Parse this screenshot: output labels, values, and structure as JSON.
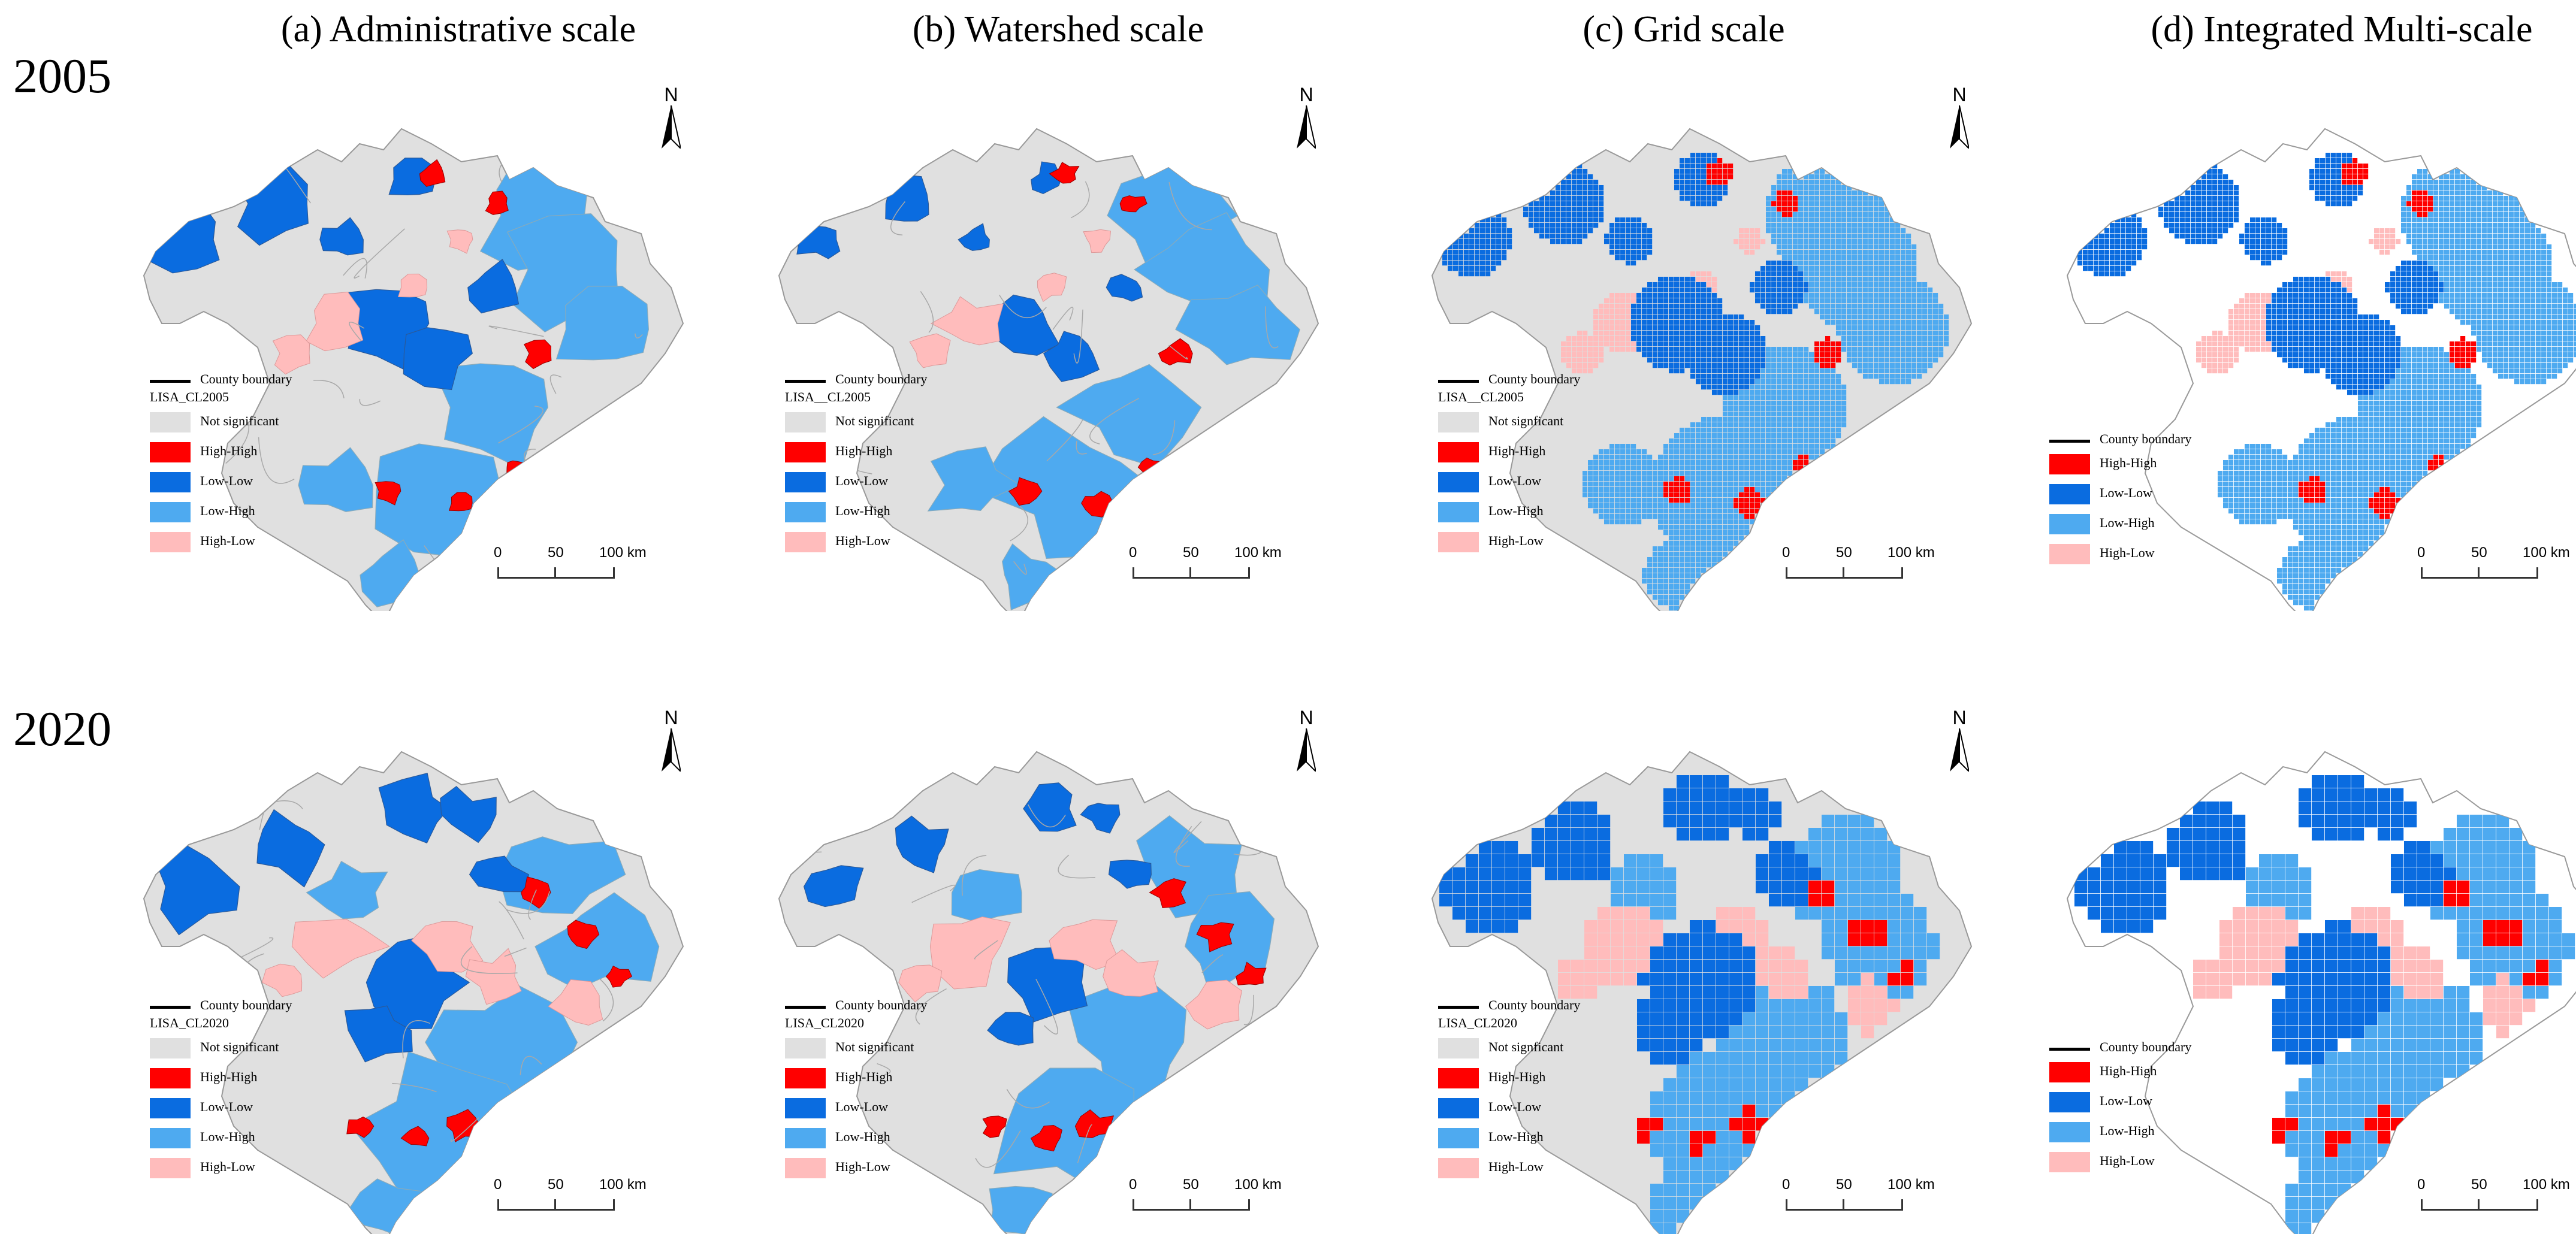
{
  "column_titles": [
    "(a) Administrative scale",
    "(b) Watershed scale",
    "(c) Grid scale",
    "(d) Integrated Multi-scale"
  ],
  "row_labels": [
    "2005",
    "2020"
  ],
  "north_label": "N",
  "legend": {
    "boundary": "County boundary",
    "titles": {
      "p2005a": "LISA_CL2005",
      "p2005b": "LISA__CL2005",
      "p2005c": "LISA__CL2005",
      "p2020a": "LISA_CL2020",
      "p2020b": "LISA_CL2020",
      "p2020c": "LISA_CL2020"
    },
    "not_significant": "Not significant",
    "not_significant_grid": "Not signficant",
    "high_high": "High-High",
    "low_low": "Low-Low",
    "low_high": "Low-High",
    "high_low": "High-Low"
  },
  "scale": {
    "t0": "0",
    "t50": "50",
    "t100": "100 km"
  },
  "colors": {
    "not_significant": "#e0e0e0",
    "high_high": "#ff0000",
    "low_low": "#0a6ce0",
    "low_high": "#4eaaf0",
    "high_low": "#ffbcbc",
    "boundary": "#000000"
  }
}
